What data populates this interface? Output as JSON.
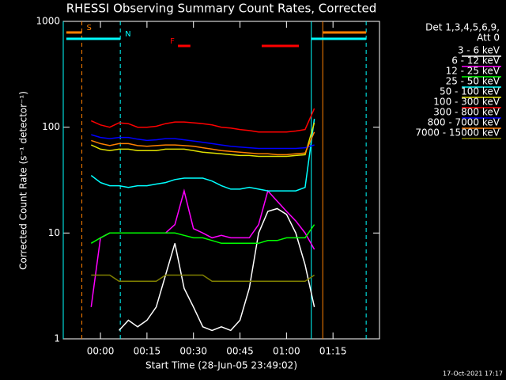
{
  "chart_data": {
    "type": "line",
    "title": "RHESSI Observing Summary Count Rates, Corrected",
    "x_label": "Start Time (28-Jun-05 23:49:02)",
    "y_label": "Corrected Count Rate (s⁻¹ detector⁻¹)",
    "legend_header": [
      "Det 1,3,4,5,6,9,",
      "Att 0"
    ],
    "footer": "17-Oct-2021 17:17",
    "y_log": true,
    "xlim": [
      -12,
      90
    ],
    "ylim": [
      1,
      1000
    ],
    "xticks": [
      {
        "value": 0,
        "label": "00:00"
      },
      {
        "value": 15,
        "label": "00:15"
      },
      {
        "value": 30,
        "label": "00:30"
      },
      {
        "value": 45,
        "label": "00:45"
      },
      {
        "value": 60,
        "label": "01:00"
      },
      {
        "value": 75,
        "label": "01:15"
      }
    ],
    "yticks": [
      1,
      10,
      100,
      1000
    ],
    "x": [
      -3,
      0,
      3,
      6,
      9,
      12,
      15,
      18,
      21,
      24,
      27,
      30,
      33,
      36,
      39,
      42,
      45,
      48,
      51,
      54,
      57,
      60,
      63,
      66,
      69
    ],
    "series": [
      {
        "name": "3 - 6 keV",
        "color": "#ffffff",
        "values": [
          null,
          null,
          null,
          1.2,
          1.5,
          1.3,
          1.5,
          2,
          4,
          8,
          3,
          2,
          1.3,
          1.2,
          1.3,
          1.2,
          1.5,
          3,
          10,
          16,
          17,
          15,
          10,
          5,
          2
        ]
      },
      {
        "name": "6 - 12 keV",
        "color": "#ff00ff",
        "values": [
          2,
          9,
          10,
          10,
          10,
          10,
          10,
          10,
          10,
          12,
          25,
          11,
          10,
          9,
          9.5,
          9,
          9,
          9,
          12,
          25,
          20,
          16,
          13,
          10,
          7
        ]
      },
      {
        "name": "12 - 25 keV",
        "color": "#00ff00",
        "values": [
          8,
          9,
          10,
          10,
          10,
          10,
          10,
          10,
          10,
          10,
          9.5,
          9,
          9,
          8.5,
          8,
          8,
          8,
          8,
          8,
          8.5,
          8.5,
          9,
          9,
          9,
          12
        ]
      },
      {
        "name": "25 - 50 keV",
        "color": "#00ffff",
        "values": [
          35,
          30,
          28,
          28,
          27,
          28,
          28,
          29,
          30,
          32,
          33,
          33,
          33,
          31,
          28,
          26,
          26,
          27,
          26,
          25,
          25,
          25,
          25,
          27,
          120
        ]
      },
      {
        "name": "50 - 100 keV",
        "color": "#e0e000",
        "values": [
          68,
          62,
          60,
          62,
          62,
          60,
          60,
          60,
          62,
          62,
          62,
          60,
          58,
          57,
          56,
          55,
          54,
          54,
          53,
          53,
          53,
          53,
          54,
          55,
          110
        ]
      },
      {
        "name": "100 - 300 keV",
        "color": "#ff0000",
        "values": [
          115,
          105,
          100,
          110,
          108,
          100,
          100,
          102,
          108,
          112,
          112,
          110,
          108,
          105,
          100,
          98,
          95,
          93,
          90,
          90,
          90,
          90,
          92,
          95,
          150
        ]
      },
      {
        "name": "300 - 800 keV",
        "color": "#0000ff",
        "values": [
          85,
          80,
          78,
          80,
          80,
          77,
          75,
          76,
          78,
          78,
          76,
          74,
          72,
          70,
          68,
          66,
          65,
          64,
          63,
          63,
          63,
          63,
          63,
          64,
          68
        ]
      },
      {
        "name": "800 - 7000 keV",
        "color": "#ff8000",
        "values": [
          75,
          70,
          67,
          70,
          70,
          67,
          66,
          67,
          68,
          68,
          67,
          66,
          64,
          62,
          60,
          59,
          58,
          57,
          56,
          56,
          55,
          55,
          56,
          57,
          90
        ]
      },
      {
        "name": "7000 - 15000 keV",
        "color": "#808000",
        "values": [
          4,
          4,
          4,
          3.5,
          3.5,
          3.5,
          3.5,
          3.5,
          4,
          4,
          4,
          4,
          4,
          3.5,
          3.5,
          3.5,
          3.5,
          3.5,
          3.5,
          3.5,
          3.5,
          3.5,
          3.5,
          3.5,
          4
        ]
      }
    ],
    "vlines": [
      {
        "x": -12,
        "color": "#00ffff",
        "dashed": false
      },
      {
        "x": -6,
        "color": "#ff8000",
        "dashed": true
      },
      {
        "x": 6.4,
        "color": "#00ffff",
        "dashed": true
      },
      {
        "x": 68,
        "color": "#00ffff",
        "dashed": false
      },
      {
        "x": 71.7,
        "color": "#ff8000",
        "dashed": false
      },
      {
        "x": 85.7,
        "color": "#00ffff",
        "dashed": true
      }
    ],
    "flags": [
      {
        "label": "S",
        "color": "#ff8000",
        "spans": [
          [
            -11,
            -6
          ],
          [
            71.7,
            85.7
          ]
        ]
      },
      {
        "label": "N",
        "color": "#00ffff",
        "spans": [
          [
            -11,
            6.4
          ],
          [
            68,
            85.7
          ]
        ]
      },
      {
        "label": "F",
        "color": "#ff0000",
        "spans": [
          [
            25,
            29
          ],
          [
            52,
            64
          ]
        ]
      }
    ]
  }
}
